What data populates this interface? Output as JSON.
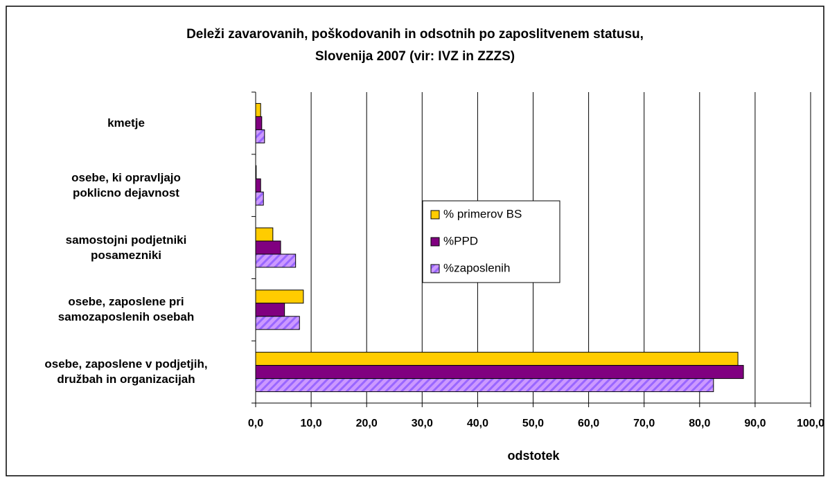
{
  "chart_data": {
    "type": "bar",
    "orientation": "horizontal",
    "title": "Deleži zavarovanih, poškodovanih in odsotnih po zaposlitvenem statusu,\nSlovenija 2007 (vir: IVZ in ZZZS)",
    "categories": [
      "kmetje",
      "osebe, ki opravljajo\npoklicno dejavnost",
      "samostojni podjetniki\nposamezniki",
      "osebe, zaposlene pri\nsamozaposlenih osebah",
      "osebe, zaposlene v podjetjih,\ndružbah in organizacijah"
    ],
    "series": [
      {
        "name": "% primerov BS",
        "color": "#ffcc00",
        "values": [
          0.9,
          0.1,
          3.1,
          8.6,
          86.9
        ]
      },
      {
        "name": "%PPD",
        "color": "#800080",
        "values": [
          1.1,
          0.9,
          4.5,
          5.2,
          87.9
        ]
      },
      {
        "name": "%zaposlenih",
        "color": "#cc99ff",
        "hatched": true,
        "values": [
          1.6,
          1.4,
          7.2,
          7.9,
          82.5
        ]
      }
    ],
    "xlabel": "odstotek",
    "xlim": [
      0,
      100
    ],
    "xticks": [
      {
        "value": 0,
        "label": "0,0"
      },
      {
        "value": 10,
        "label": "10,0"
      },
      {
        "value": 20,
        "label": "20,0"
      },
      {
        "value": 30,
        "label": "30,0"
      },
      {
        "value": 40,
        "label": "40,0"
      },
      {
        "value": 50,
        "label": "50,0"
      },
      {
        "value": 60,
        "label": "60,0"
      },
      {
        "value": 70,
        "label": "70,0"
      },
      {
        "value": 80,
        "label": "80,0"
      },
      {
        "value": 90,
        "label": "90,0"
      },
      {
        "value": 100,
        "label": "100,0"
      }
    ],
    "grid": true
  }
}
